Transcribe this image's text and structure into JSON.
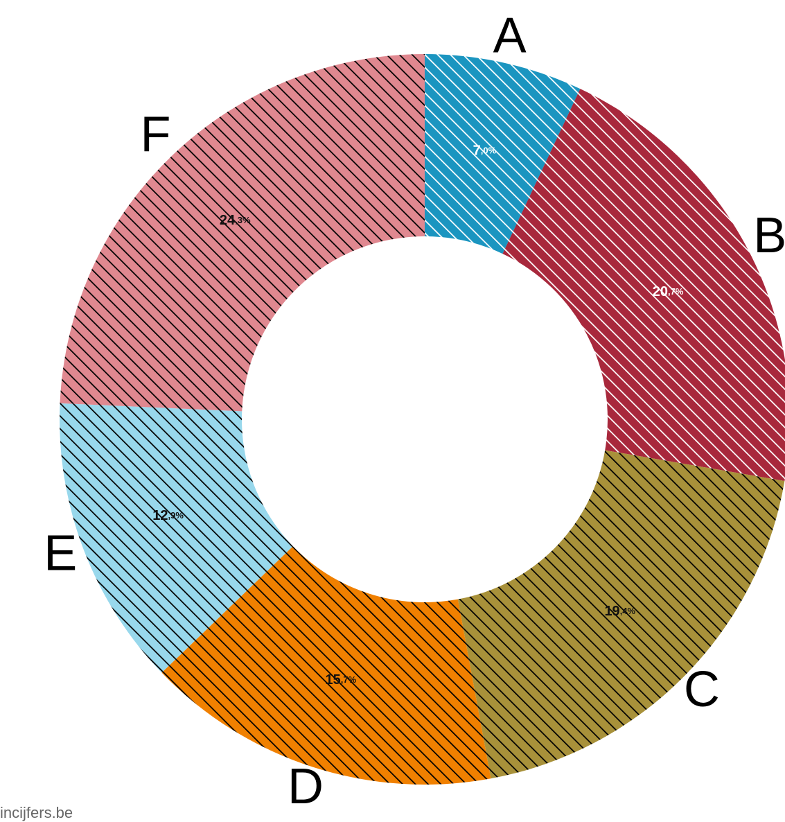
{
  "chart_data": {
    "type": "donut",
    "categories": [
      "A",
      "B",
      "C",
      "D",
      "E",
      "F"
    ],
    "values": [
      7.0,
      20.7,
      19.4,
      15.7,
      12.9,
      24.3
    ],
    "value_labels": [
      "7,0%",
      "20,7%",
      "19,4%",
      "15,7%",
      "12,9%",
      "24,3%"
    ],
    "colors": [
      "#1b95c0",
      "#a8283c",
      "#a8913a",
      "#f08000",
      "#98d8ec",
      "#e08890"
    ],
    "hatch_colors": [
      "#ffffff",
      "#ffffff",
      "#000000",
      "#000000",
      "#000000",
      "#000000"
    ],
    "source": "incijfers.be"
  }
}
